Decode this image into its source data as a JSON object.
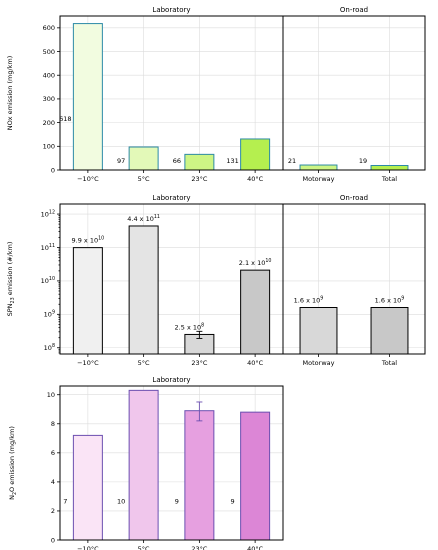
{
  "figure": {
    "charts": [
      {
        "id": "nox",
        "type": "bar",
        "ylabel_main": "NOx emission (mg/km)",
        "ylim": [
          0,
          650
        ],
        "yticks": [
          0,
          100,
          200,
          300,
          400,
          500,
          600
        ],
        "scale": "linear",
        "grid": true,
        "label_mode": "left",
        "panels": [
          {
            "title": "Laboratory",
            "categories": [
              "−10°C",
              "5°C",
              "23°C",
              "40°C"
            ],
            "values": [
              618,
              97,
              66,
              131
            ],
            "labels": [
              "618",
              "97",
              "66",
              "131"
            ],
            "fills": [
              "#f2fce0",
              "#e3f9b8",
              "#cdf585",
              "#b5ef4f"
            ],
            "edge": "#2c8aa6"
          },
          {
            "title": "On-road",
            "categories": [
              "Motorway",
              "Total"
            ],
            "values": [
              21,
              19
            ],
            "labels": [
              "21",
              "19"
            ],
            "fills": [
              "#cdf585",
              "#b5ef4f"
            ],
            "edge": "#2c8aa6"
          }
        ]
      },
      {
        "id": "spn",
        "type": "bar",
        "ylabel_main": "SPN",
        "ylabel_sub": "23",
        "ylabel_rest": " emission (#/km)",
        "ylim": [
          65000000,
          2000000000000
        ],
        "scale": "log",
        "ytick_exponents": [
          8,
          9,
          10,
          11,
          12
        ],
        "grid": true,
        "label_mode": "top",
        "panels": [
          {
            "title": "Laboratory",
            "categories": [
              "−10°C",
              "5°C",
              "23°C",
              "40°C"
            ],
            "values": [
              99000000000,
              440000000000,
              250000000,
              21000000000
            ],
            "errors": [
              null,
              null,
              [
                190000000,
                310000000
              ],
              null
            ],
            "labels": [
              {
                "mantissa": "9.9",
                "exp": "10"
              },
              {
                "mantissa": "4.4",
                "exp": "11"
              },
              {
                "mantissa": "2.5",
                "exp": "8"
              },
              {
                "mantissa": "2.1",
                "exp": "10"
              }
            ],
            "fills": [
              "#f0f0f0",
              "#e4e4e4",
              "#d8d8d8",
              "#c8c8c8"
            ],
            "edge": "#000000"
          },
          {
            "title": "On-road",
            "categories": [
              "Motorway",
              "Total"
            ],
            "values": [
              1600000000,
              1600000000
            ],
            "labels": [
              {
                "mantissa": "1.6",
                "exp": "9"
              },
              {
                "mantissa": "1.6",
                "exp": "9"
              }
            ],
            "fills": [
              "#d8d8d8",
              "#c8c8c8"
            ],
            "edge": "#000000"
          }
        ]
      },
      {
        "id": "n2o",
        "type": "bar",
        "ylabel_main": "N",
        "ylabel_sub": "2",
        "ylabel_rest": "O emission (mg/km)",
        "ylim": [
          0,
          10.6
        ],
        "yticks": [
          0,
          2,
          4,
          6,
          8,
          10
        ],
        "scale": "linear",
        "grid": true,
        "label_mode": "left",
        "panels": [
          {
            "title": "Laboratory",
            "categories": [
              "−10°C",
              "5°C",
              "23°C",
              "40°C"
            ],
            "values": [
              7.2,
              10.3,
              8.9,
              8.8
            ],
            "errors": [
              null,
              null,
              [
                8.2,
                9.5
              ],
              null
            ],
            "labels": [
              "7",
              "10",
              "9",
              "9"
            ],
            "fills": [
              "#fae4f6",
              "#f0c6ec",
              "#e6a0e0",
              "#dc86d6"
            ],
            "edge": "#6b4fb0"
          }
        ]
      }
    ]
  }
}
